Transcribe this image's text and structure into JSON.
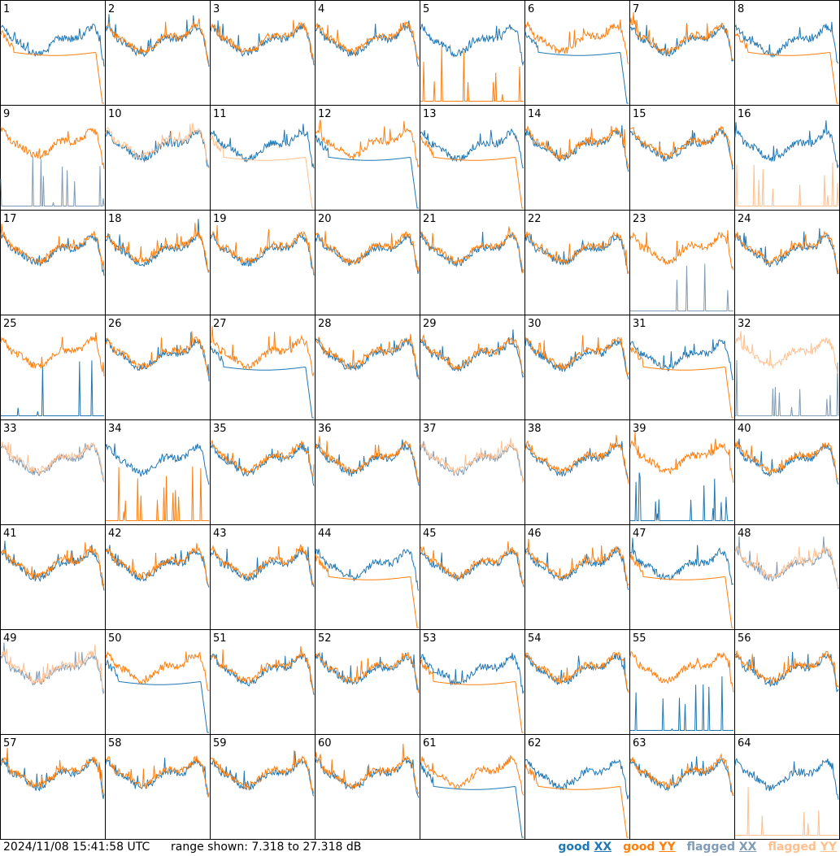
{
  "footer": {
    "timestamp": "2024/11/08 15:41:58 UTC",
    "range_label": "range shown: 7.318 to 27.318 dB"
  },
  "legend": [
    {
      "prefix": "good ",
      "suffix": "XX",
      "color": "#1f77b4"
    },
    {
      "prefix": "good ",
      "suffix": "YY",
      "color": "#ff7f0e"
    },
    {
      "prefix": "flagged ",
      "suffix": "XX",
      "color": "#7f9bb5"
    },
    {
      "prefix": "flagged ",
      "suffix": "YY",
      "color": "#ffbf8f"
    }
  ],
  "chart_data": {
    "type": "line",
    "grid": [
      8,
      8
    ],
    "ylim": [
      7.318,
      27.318
    ],
    "y_units": "dB",
    "series_colors": {
      "good_xx": "#1f77b4",
      "good_yy": "#ff7f0e",
      "flagged_xx": "#7f9bb5",
      "flagged_yy": "#ffbf8f"
    },
    "panels": [
      {
        "id": "1",
        "xx": "good",
        "yy": "good",
        "xx_shape": "normal",
        "yy_shape": "dropoff"
      },
      {
        "id": "2",
        "xx": "good",
        "yy": "good",
        "xx_shape": "normal",
        "yy_shape": "normal"
      },
      {
        "id": "3",
        "xx": "good",
        "yy": "good",
        "xx_shape": "normal",
        "yy_shape": "normal"
      },
      {
        "id": "4",
        "xx": "good",
        "yy": "good",
        "xx_shape": "normal",
        "yy_shape": "normal"
      },
      {
        "id": "5",
        "xx": "good",
        "yy": "good",
        "xx_shape": "normal",
        "yy_shape": "spiky_low"
      },
      {
        "id": "6",
        "xx": "good",
        "yy": "good",
        "xx_shape": "dropoff",
        "yy_shape": "normal"
      },
      {
        "id": "7",
        "xx": "good",
        "yy": "good",
        "xx_shape": "normal",
        "yy_shape": "normal"
      },
      {
        "id": "8",
        "xx": "good",
        "yy": "good",
        "xx_shape": "normal",
        "yy_shape": "dropoff"
      },
      {
        "id": "9",
        "xx": "flagged",
        "yy": "good",
        "xx_shape": "spiky_low",
        "yy_shape": "normal"
      },
      {
        "id": "10",
        "xx": "good",
        "yy": "flagged",
        "xx_shape": "normal",
        "yy_shape": "normal"
      },
      {
        "id": "11",
        "xx": "good",
        "yy": "flagged",
        "xx_shape": "normal",
        "yy_shape": "dropoff"
      },
      {
        "id": "12",
        "xx": "good",
        "yy": "good",
        "xx_shape": "dropoff",
        "yy_shape": "normal"
      },
      {
        "id": "13",
        "xx": "good",
        "yy": "good",
        "xx_shape": "normal",
        "yy_shape": "dropoff"
      },
      {
        "id": "14",
        "xx": "good",
        "yy": "good",
        "xx_shape": "normal",
        "yy_shape": "normal"
      },
      {
        "id": "15",
        "xx": "good",
        "yy": "good",
        "xx_shape": "normal",
        "yy_shape": "normal"
      },
      {
        "id": "16",
        "xx": "good",
        "yy": "flagged",
        "xx_shape": "normal",
        "yy_shape": "spiky_low"
      },
      {
        "id": "17",
        "xx": "good",
        "yy": "good",
        "xx_shape": "normal",
        "yy_shape": "normal"
      },
      {
        "id": "18",
        "xx": "good",
        "yy": "good",
        "xx_shape": "normal",
        "yy_shape": "normal"
      },
      {
        "id": "19",
        "xx": "good",
        "yy": "good",
        "xx_shape": "normal",
        "yy_shape": "normal"
      },
      {
        "id": "20",
        "xx": "good",
        "yy": "good",
        "xx_shape": "normal",
        "yy_shape": "normal"
      },
      {
        "id": "21",
        "xx": "good",
        "yy": "good",
        "xx_shape": "normal",
        "yy_shape": "normal"
      },
      {
        "id": "22",
        "xx": "good",
        "yy": "good",
        "xx_shape": "normal",
        "yy_shape": "normal"
      },
      {
        "id": "23",
        "xx": "flagged",
        "yy": "good",
        "xx_shape": "spiky_low",
        "yy_shape": "normal"
      },
      {
        "id": "24",
        "xx": "good",
        "yy": "good",
        "xx_shape": "normal",
        "yy_shape": "normal"
      },
      {
        "id": "25",
        "xx": "good",
        "yy": "good",
        "xx_shape": "spiky_low",
        "yy_shape": "normal"
      },
      {
        "id": "26",
        "xx": "good",
        "yy": "good",
        "xx_shape": "normal",
        "yy_shape": "normal"
      },
      {
        "id": "27",
        "xx": "good",
        "yy": "good",
        "xx_shape": "dropoff",
        "yy_shape": "normal"
      },
      {
        "id": "28",
        "xx": "good",
        "yy": "good",
        "xx_shape": "normal",
        "yy_shape": "normal"
      },
      {
        "id": "29",
        "xx": "good",
        "yy": "good",
        "xx_shape": "normal",
        "yy_shape": "normal"
      },
      {
        "id": "30",
        "xx": "good",
        "yy": "good",
        "xx_shape": "normal",
        "yy_shape": "normal"
      },
      {
        "id": "31",
        "xx": "good",
        "yy": "good",
        "xx_shape": "normal",
        "yy_shape": "dropoff"
      },
      {
        "id": "32",
        "xx": "flagged",
        "yy": "flagged",
        "xx_shape": "spiky_low",
        "yy_shape": "normal"
      },
      {
        "id": "33",
        "xx": "flagged",
        "yy": "flagged",
        "xx_shape": "normal",
        "yy_shape": "normal"
      },
      {
        "id": "34",
        "xx": "good",
        "yy": "good",
        "xx_shape": "normal",
        "yy_shape": "spiky_low"
      },
      {
        "id": "35",
        "xx": "good",
        "yy": "good",
        "xx_shape": "normal",
        "yy_shape": "normal"
      },
      {
        "id": "36",
        "xx": "good",
        "yy": "good",
        "xx_shape": "normal",
        "yy_shape": "normal"
      },
      {
        "id": "37",
        "xx": "flagged",
        "yy": "flagged",
        "xx_shape": "normal",
        "yy_shape": "normal"
      },
      {
        "id": "38",
        "xx": "good",
        "yy": "good",
        "xx_shape": "normal",
        "yy_shape": "normal"
      },
      {
        "id": "39",
        "xx": "good",
        "yy": "good",
        "xx_shape": "spiky_low",
        "yy_shape": "normal"
      },
      {
        "id": "40",
        "xx": "good",
        "yy": "good",
        "xx_shape": "normal",
        "yy_shape": "normal"
      },
      {
        "id": "41",
        "xx": "good",
        "yy": "good",
        "xx_shape": "normal",
        "yy_shape": "normal"
      },
      {
        "id": "42",
        "xx": "good",
        "yy": "good",
        "xx_shape": "normal",
        "yy_shape": "normal"
      },
      {
        "id": "43",
        "xx": "good",
        "yy": "good",
        "xx_shape": "normal",
        "yy_shape": "normal"
      },
      {
        "id": "44",
        "xx": "good",
        "yy": "good",
        "xx_shape": "normal",
        "yy_shape": "dropoff"
      },
      {
        "id": "45",
        "xx": "good",
        "yy": "good",
        "xx_shape": "normal",
        "yy_shape": "normal"
      },
      {
        "id": "46",
        "xx": "good",
        "yy": "good",
        "xx_shape": "normal",
        "yy_shape": "normal"
      },
      {
        "id": "47",
        "xx": "good",
        "yy": "good",
        "xx_shape": "normal",
        "yy_shape": "dropoff"
      },
      {
        "id": "48",
        "xx": "flagged",
        "yy": "flagged",
        "xx_shape": "normal",
        "yy_shape": "normal"
      },
      {
        "id": "49",
        "xx": "flagged",
        "yy": "flagged",
        "xx_shape": "normal",
        "yy_shape": "normal"
      },
      {
        "id": "50",
        "xx": "good",
        "yy": "good",
        "xx_shape": "dropoff",
        "yy_shape": "normal"
      },
      {
        "id": "51",
        "xx": "good",
        "yy": "good",
        "xx_shape": "normal",
        "yy_shape": "normal"
      },
      {
        "id": "52",
        "xx": "good",
        "yy": "good",
        "xx_shape": "normal",
        "yy_shape": "normal"
      },
      {
        "id": "53",
        "xx": "good",
        "yy": "good",
        "xx_shape": "normal",
        "yy_shape": "dropoff"
      },
      {
        "id": "54",
        "xx": "good",
        "yy": "good",
        "xx_shape": "normal",
        "yy_shape": "normal"
      },
      {
        "id": "55",
        "xx": "good",
        "yy": "good",
        "xx_shape": "spiky_low",
        "yy_shape": "normal"
      },
      {
        "id": "56",
        "xx": "good",
        "yy": "good",
        "xx_shape": "normal",
        "yy_shape": "normal"
      },
      {
        "id": "57",
        "xx": "good",
        "yy": "good",
        "xx_shape": "normal",
        "yy_shape": "normal"
      },
      {
        "id": "58",
        "xx": "good",
        "yy": "good",
        "xx_shape": "normal",
        "yy_shape": "normal"
      },
      {
        "id": "59",
        "xx": "good",
        "yy": "good",
        "xx_shape": "normal",
        "yy_shape": "normal"
      },
      {
        "id": "60",
        "xx": "good",
        "yy": "good",
        "xx_shape": "normal",
        "yy_shape": "normal"
      },
      {
        "id": "61",
        "xx": "good",
        "yy": "good",
        "xx_shape": "dropoff",
        "yy_shape": "normal"
      },
      {
        "id": "62",
        "xx": "good",
        "yy": "good",
        "xx_shape": "normal",
        "yy_shape": "dropoff"
      },
      {
        "id": "63",
        "xx": "good",
        "yy": "good",
        "xx_shape": "normal",
        "yy_shape": "normal"
      },
      {
        "id": "64",
        "xx": "good",
        "yy": "flagged",
        "xx_shape": "normal",
        "yy_shape": "spiky_low"
      }
    ]
  }
}
